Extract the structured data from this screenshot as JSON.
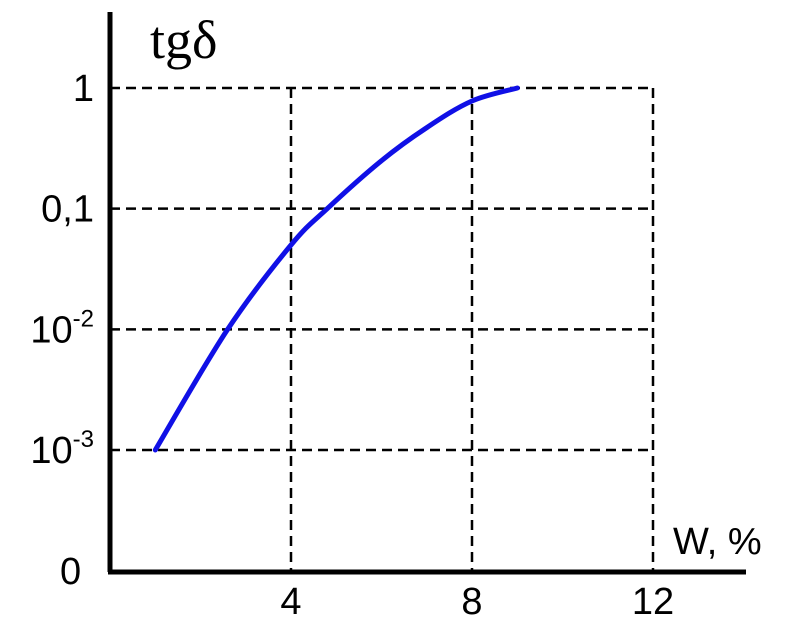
{
  "chart_data": {
    "type": "line",
    "ylabel": "tgδ",
    "xlabel": "W, %",
    "origin_label": "0",
    "x_ticks": [
      {
        "value": 4,
        "label": "4"
      },
      {
        "value": 8,
        "label": "8"
      },
      {
        "value": 12,
        "label": "12"
      }
    ],
    "y_ticks": [
      {
        "value": 0.001,
        "base": "10",
        "exp": "-3"
      },
      {
        "value": 0.01,
        "base": "10",
        "exp": "-2"
      },
      {
        "value": 0.1,
        "base": "0,1",
        "exp": ""
      },
      {
        "value": 1,
        "base": "1",
        "exp": ""
      }
    ],
    "y_scale": "log",
    "xlim": [
      0,
      14
    ],
    "grid": true,
    "color": "#1010e6",
    "series": [
      {
        "x": [
          1.0,
          2.6,
          4.0,
          4.8,
          6.0,
          7.0,
          8.0,
          9.0
        ],
        "y": [
          0.001,
          0.01,
          0.05,
          0.1,
          0.25,
          0.47,
          0.78,
          1.0
        ]
      }
    ]
  }
}
